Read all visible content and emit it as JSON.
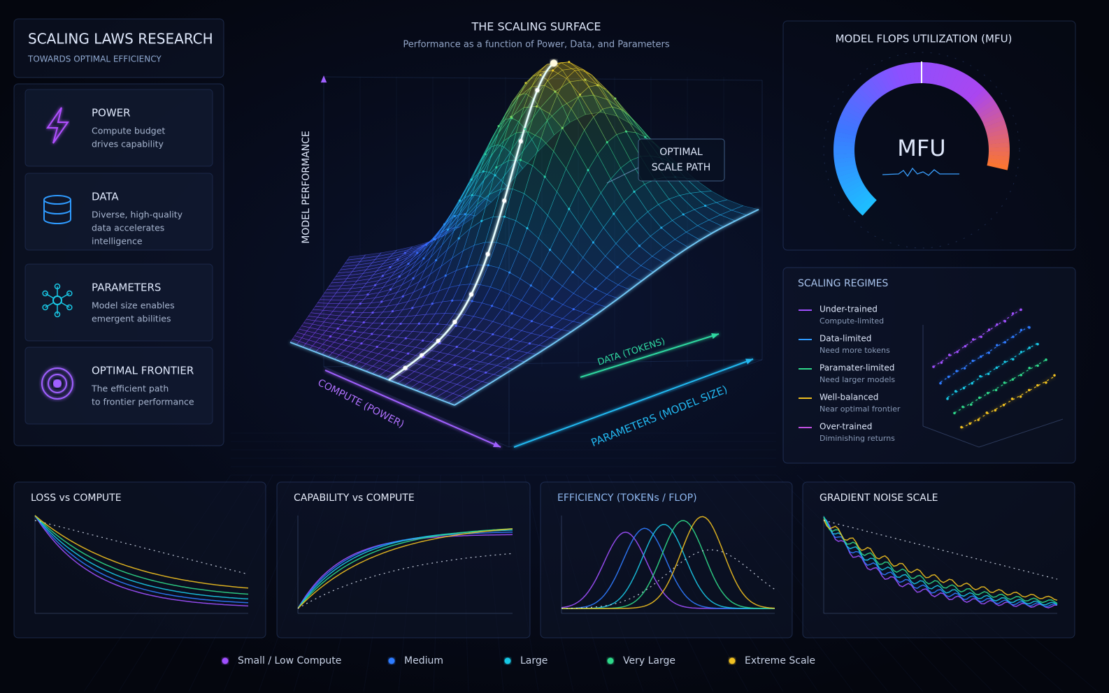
{
  "header": {
    "title": "SCALING LAWS RESEARCH",
    "subtitle": "TOWARDS OPTIMAL EFFICIENCY"
  },
  "factors": [
    {
      "title": "POWER",
      "lines": [
        "Compute budget",
        "drives capability"
      ]
    },
    {
      "title": "DATA",
      "lines": [
        "Diverse, high-quality",
        "data accelerates",
        "intelligence"
      ]
    },
    {
      "title": "PARAMETERS",
      "lines": [
        "Model size enables",
        "emergent abilities"
      ]
    },
    {
      "title": "OPTIMAL FRONTIER",
      "lines": [
        "The efficient path",
        "to frontier performance"
      ]
    }
  ],
  "surface": {
    "title": "THE SCALING SURFACE",
    "subtitle": "Performance as a function of Power, Data, and Parameters",
    "callout": [
      "OPTIMAL",
      "SCALE PATH"
    ],
    "axes": {
      "y": "MODEL PERFORMANCE",
      "compute": "COMPUTE (POWER)",
      "data": "DATA (TOKENS)",
      "params": "PARAMETERS (MODEL SIZE)"
    }
  },
  "mfu": {
    "title": "MODEL FLOPS UTILIZATION (MFU)",
    "label": "MFU"
  },
  "regimes": {
    "title": "SCALING REGIMES",
    "items": [
      {
        "name": "Under-trained",
        "desc": "Compute-limited",
        "color": "#a050ff"
      },
      {
        "name": "Data-limited",
        "desc": "Need more tokens",
        "color": "#2f9bff"
      },
      {
        "name": "Paramater-limited",
        "desc": "Need larger models",
        "color": "#2fd88a"
      },
      {
        "name": "Well-balanced",
        "desc": "Near optimal frontier",
        "color": "#f0c020"
      },
      {
        "name": "Over-trained",
        "desc": "Diminishing returns",
        "color": "#c050e0"
      }
    ]
  },
  "panels": [
    {
      "title": "LOSS vs COMPUTE"
    },
    {
      "title": "CAPABILITY vs COMPUTE"
    },
    {
      "title": "EFFICIENCY (TOKENs / FLOP)"
    },
    {
      "title": "GRADIENT NOISE SCALE"
    }
  ],
  "legend": [
    {
      "label": "Small / Low Compute",
      "color": "#a050ff"
    },
    {
      "label": "Medium",
      "color": "#2f7bff"
    },
    {
      "label": "Large",
      "color": "#19c8e6"
    },
    {
      "label": "Very Large",
      "color": "#2fd88a"
    },
    {
      "label": "Extreme Scale",
      "color": "#f0c020"
    }
  ]
}
